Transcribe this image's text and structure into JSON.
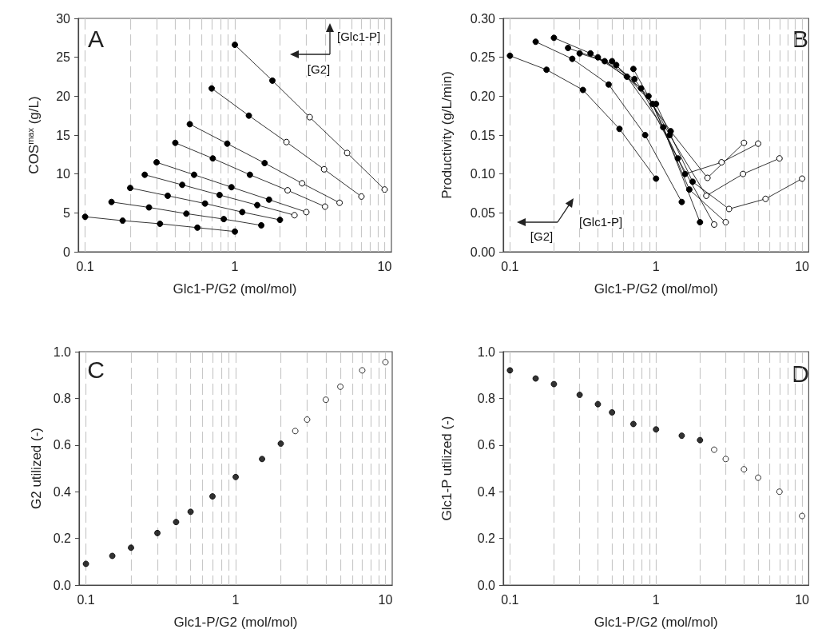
{
  "chart_data": [
    {
      "type": "line",
      "xlabel": "Glc1-P/G2 (mol/mol)",
      "ylabel": "COS$^{max}$ (g/L)",
      "annotations": [
        "A",
        "[G2]",
        "[Glc1-P]"
      ],
      "log": "x",
      "grid": "x",
      "marker": "circle",
      "xlim": [
        0.09,
        11.1
      ],
      "xticks": [
        0.1,
        {
          "value": 0.2,
          "label": null
        },
        {
          "value": 0.3,
          "label": null
        },
        {
          "value": 0.4,
          "label": null
        },
        {
          "value": 0.5,
          "label": null
        },
        {
          "value": 0.6,
          "label": null
        },
        {
          "value": 0.7,
          "label": null
        },
        {
          "value": 0.8,
          "label": null
        },
        {
          "value": 0.9,
          "label": null
        },
        1,
        {
          "value": 2,
          "label": null
        },
        {
          "value": 3,
          "label": null
        },
        {
          "value": 4,
          "label": null
        },
        {
          "value": 5,
          "label": null
        },
        {
          "value": 6,
          "label": null
        },
        {
          "value": 7,
          "label": null
        },
        {
          "value": 8,
          "label": null
        },
        {
          "value": 9,
          "label": null
        },
        10
      ],
      "ylim": [
        0,
        30
      ],
      "yticks": [
        0,
        5,
        10,
        15,
        20,
        25,
        30
      ],
      "series": [
        {
          "color": "#000000",
          "x": [
            0.1,
            0.178,
            0.316,
            0.562,
            1
          ],
          "values": [
            4.5,
            4.0,
            3.6,
            3.1,
            2.6
          ],
          "colors": [
            "#000000",
            "#000000",
            "#000000",
            "#000000",
            "#000000"
          ]
        },
        {
          "color": "#000000",
          "x": [
            0.15,
            0.267,
            0.474,
            0.843,
            1.5
          ],
          "values": [
            6.4,
            5.7,
            4.9,
            4.2,
            3.4
          ],
          "colors": [
            "#000000",
            "#000000",
            "#000000",
            "#000000",
            "#000000"
          ]
        },
        {
          "color": "#000000",
          "x": [
            0.2,
            0.356,
            0.632,
            1.12,
            2
          ],
          "values": [
            8.2,
            7.2,
            6.2,
            5.1,
            4.1
          ],
          "colors": [
            "#000000",
            "#000000",
            "#000000",
            "#000000",
            "#000000"
          ]
        },
        {
          "color": "#000000",
          "x": [
            0.25,
            0.445,
            0.79,
            1.41,
            2.5
          ],
          "values": [
            9.9,
            8.6,
            7.3,
            6.0,
            4.7
          ],
          "colors": [
            "#000000",
            "#000000",
            "#000000",
            "#000000",
            "#ffffff"
          ]
        },
        {
          "color": "#000000",
          "x": [
            0.3,
            0.534,
            0.949,
            1.69,
            3
          ],
          "values": [
            11.5,
            9.9,
            8.3,
            6.7,
            5.1
          ],
          "colors": [
            "#000000",
            "#000000",
            "#000000",
            "#000000",
            "#ffffff"
          ]
        },
        {
          "color": "#000000",
          "x": [
            0.4,
            0.712,
            1.26,
            2.25,
            4
          ],
          "values": [
            14.0,
            12.0,
            9.9,
            7.9,
            5.8
          ],
          "colors": [
            "#000000",
            "#000000",
            "#000000",
            "#ffffff",
            "#ffffff"
          ]
        },
        {
          "color": "#000000",
          "x": [
            0.5,
            0.889,
            1.58,
            2.81,
            5
          ],
          "values": [
            16.4,
            13.9,
            11.4,
            8.8,
            6.3
          ],
          "colors": [
            "#000000",
            "#000000",
            "#000000",
            "#ffffff",
            "#ffffff"
          ]
        },
        {
          "color": "#000000",
          "x": [
            0.7,
            1.24,
            2.21,
            3.94,
            7
          ],
          "values": [
            21.0,
            17.5,
            14.1,
            10.6,
            7.1
          ],
          "colors": [
            "#000000",
            "#000000",
            "#ffffff",
            "#ffffff",
            "#ffffff"
          ]
        },
        {
          "color": "#000000",
          "x": [
            1,
            1.78,
            3.16,
            5.62,
            10
          ],
          "values": [
            26.6,
            22.0,
            17.3,
            12.7,
            8.0
          ],
          "colors": [
            "#000000",
            "#000000",
            "#ffffff",
            "#ffffff",
            "#ffffff"
          ]
        }
      ]
    },
    {
      "type": "line",
      "xlabel": "Glc1-P/G2 (mol/mol)",
      "ylabel": "Productivity (g/L/min)",
      "annotations": [
        "B",
        "[G2]",
        "[Glc1-P]"
      ],
      "log": "x",
      "grid": "x",
      "marker": "circle",
      "xlim": [
        0.09,
        11.1
      ],
      "xticks": [
        0.1,
        {
          "value": 0.2,
          "label": null
        },
        {
          "value": 0.3,
          "label": null
        },
        {
          "value": 0.4,
          "label": null
        },
        {
          "value": 0.5,
          "label": null
        },
        {
          "value": 0.6,
          "label": null
        },
        {
          "value": 0.7,
          "label": null
        },
        {
          "value": 0.8,
          "label": null
        },
        {
          "value": 0.9,
          "label": null
        },
        1,
        {
          "value": 2,
          "label": null
        },
        {
          "value": 3,
          "label": null
        },
        {
          "value": 4,
          "label": null
        },
        {
          "value": 5,
          "label": null
        },
        {
          "value": 6,
          "label": null
        },
        {
          "value": 7,
          "label": null
        },
        {
          "value": 8,
          "label": null
        },
        {
          "value": 9,
          "label": null
        },
        10
      ],
      "ylim": [
        0,
        0.3
      ],
      "yticks": [
        {
          "value": 0,
          "label": "0.00"
        },
        0.05,
        {
          "value": 0.1,
          "label": "0.10"
        },
        0.15,
        {
          "value": 0.2,
          "label": "0.20"
        },
        0.25,
        {
          "value": 0.3,
          "label": "0.30"
        }
      ],
      "series": [
        {
          "color": "#000000",
          "x": [
            0.1,
            0.178,
            0.316,
            0.562,
            1
          ],
          "values": [
            0.252,
            0.234,
            0.208,
            0.158,
            0.094
          ],
          "colors": [
            "#000000",
            "#000000",
            "#000000",
            "#000000",
            "#000000"
          ]
        },
        {
          "color": "#000000",
          "x": [
            0.15,
            0.267,
            0.474,
            0.843,
            1.5
          ],
          "values": [
            0.27,
            0.248,
            0.215,
            0.15,
            0.064
          ],
          "colors": [
            "#000000",
            "#000000",
            "#000000",
            "#000000",
            "#000000"
          ]
        },
        {
          "color": "#000000",
          "x": [
            0.2,
            0.356,
            0.632,
            1.12,
            2
          ],
          "values": [
            0.275,
            0.255,
            0.225,
            0.16,
            0.038
          ],
          "colors": [
            "#000000",
            "#000000",
            "#000000",
            "#000000",
            "#000000"
          ]
        },
        {
          "color": "#000000",
          "x": [
            0.25,
            0.445,
            0.79,
            1.41,
            2.5
          ],
          "values": [
            0.262,
            0.245,
            0.21,
            0.12,
            0.035
          ],
          "colors": [
            "#000000",
            "#000000",
            "#000000",
            "#000000",
            "#ffffff"
          ]
        },
        {
          "color": "#000000",
          "x": [
            0.3,
            0.534,
            0.949,
            1.69,
            3
          ],
          "values": [
            0.255,
            0.24,
            0.19,
            0.08,
            0.038
          ],
          "colors": [
            "#000000",
            "#000000",
            "#000000",
            "#000000",
            "#ffffff"
          ]
        },
        {
          "color": "#000000",
          "x": [
            0.4,
            0.712,
            1.26,
            2.25,
            4
          ],
          "values": [
            0.25,
            0.222,
            0.155,
            0.095,
            0.14
          ],
          "colors": [
            "#000000",
            "#000000",
            "#000000",
            "#ffffff",
            "#ffffff"
          ]
        },
        {
          "color": "#000000",
          "x": [
            0.5,
            0.889,
            1.58,
            2.81,
            5
          ],
          "values": [
            0.245,
            0.2,
            0.1,
            0.115,
            0.139
          ],
          "colors": [
            "#000000",
            "#000000",
            "#000000",
            "#ffffff",
            "#ffffff"
          ]
        },
        {
          "color": "#000000",
          "x": [
            0.7,
            1.24,
            2.21,
            3.94,
            7
          ],
          "values": [
            0.235,
            0.15,
            0.072,
            0.1,
            0.12
          ],
          "colors": [
            "#000000",
            "#000000",
            "#ffffff",
            "#ffffff",
            "#ffffff"
          ]
        },
        {
          "color": "#000000",
          "x": [
            1,
            1.78,
            3.16,
            5.62,
            10
          ],
          "values": [
            0.19,
            0.09,
            0.055,
            0.068,
            0.094
          ],
          "colors": [
            "#000000",
            "#000000",
            "#ffffff",
            "#ffffff",
            "#ffffff"
          ]
        }
      ]
    },
    {
      "type": "scatter",
      "xlabel": "Glc1-P/G2 (mol/mol)",
      "ylabel": "G2 utilized (-)",
      "annotations": [
        "C"
      ],
      "log": "x",
      "grid": "x",
      "marker": "circle",
      "xlim": [
        0.09,
        11.1
      ],
      "xticks": [
        0.1,
        {
          "value": 0.2,
          "label": null
        },
        {
          "value": 0.3,
          "label": null
        },
        {
          "value": 0.4,
          "label": null
        },
        {
          "value": 0.5,
          "label": null
        },
        {
          "value": 0.6,
          "label": null
        },
        {
          "value": 0.7,
          "label": null
        },
        {
          "value": 0.8,
          "label": null
        },
        {
          "value": 0.9,
          "label": null
        },
        1,
        {
          "value": 2,
          "label": null
        },
        {
          "value": 3,
          "label": null
        },
        {
          "value": 4,
          "label": null
        },
        {
          "value": 5,
          "label": null
        },
        {
          "value": 6,
          "label": null
        },
        {
          "value": 7,
          "label": null
        },
        {
          "value": 8,
          "label": null
        },
        {
          "value": 9,
          "label": null
        },
        10
      ],
      "ylim": [
        0,
        1
      ],
      "yticks": [
        {
          "value": 0,
          "label": "0.0"
        },
        0.2,
        0.4,
        0.6,
        0.8,
        {
          "value": 1,
          "label": "1.0"
        }
      ],
      "series": [
        {
          "color": "#000000",
          "x": [
            0.1,
            0.15,
            0.2,
            0.3,
            0.4,
            0.5,
            0.7,
            1,
            1.5,
            2,
            2.5,
            3,
            4,
            5,
            7,
            10
          ],
          "values": [
            0.091,
            0.125,
            0.16,
            0.223,
            0.27,
            0.314,
            0.38,
            0.463,
            0.54,
            0.606,
            0.66,
            0.709,
            0.794,
            0.85,
            0.92,
            0.955
          ],
          "colors": [
            "#000000",
            "#000000",
            "#000000",
            "#000000",
            "#000000",
            "#000000",
            "#000000",
            "#000000",
            "#000000",
            "#000000",
            "#ffffff",
            "#ffffff",
            "#ffffff",
            "#ffffff",
            "#ffffff",
            "#ffffff"
          ]
        }
      ]
    },
    {
      "type": "scatter",
      "xlabel": "Glc1-P/G2 (mol/mol)",
      "ylabel": "Glc1-P utilized (-)",
      "annotations": [
        "D"
      ],
      "log": "x",
      "grid": "x",
      "marker": "circle",
      "xlim": [
        0.09,
        11.1
      ],
      "xticks": [
        0.1,
        {
          "value": 0.2,
          "label": null
        },
        {
          "value": 0.3,
          "label": null
        },
        {
          "value": 0.4,
          "label": null
        },
        {
          "value": 0.5,
          "label": null
        },
        {
          "value": 0.6,
          "label": null
        },
        {
          "value": 0.7,
          "label": null
        },
        {
          "value": 0.8,
          "label": null
        },
        {
          "value": 0.9,
          "label": null
        },
        1,
        {
          "value": 2,
          "label": null
        },
        {
          "value": 3,
          "label": null
        },
        {
          "value": 4,
          "label": null
        },
        {
          "value": 5,
          "label": null
        },
        {
          "value": 6,
          "label": null
        },
        {
          "value": 7,
          "label": null
        },
        {
          "value": 8,
          "label": null
        },
        {
          "value": 9,
          "label": null
        },
        10
      ],
      "ylim": [
        0,
        1
      ],
      "yticks": [
        {
          "value": 0,
          "label": "0.0"
        },
        0.2,
        0.4,
        0.6,
        0.8,
        {
          "value": 1,
          "label": "1.0"
        }
      ],
      "series": [
        {
          "color": "#000000",
          "x": [
            0.1,
            0.15,
            0.2,
            0.3,
            0.4,
            0.5,
            0.7,
            1,
            1.5,
            2,
            2.5,
            3,
            4,
            5,
            7,
            10
          ],
          "values": [
            0.92,
            0.885,
            0.861,
            0.815,
            0.775,
            0.74,
            0.69,
            0.667,
            0.64,
            0.621,
            0.58,
            0.54,
            0.496,
            0.46,
            0.4,
            0.296
          ],
          "colors": [
            "#000000",
            "#000000",
            "#000000",
            "#000000",
            "#000000",
            "#000000",
            "#000000",
            "#000000",
            "#000000",
            "#000000",
            "#ffffff",
            "#ffffff",
            "#ffffff",
            "#ffffff",
            "#ffffff",
            "#ffffff"
          ]
        }
      ]
    }
  ]
}
